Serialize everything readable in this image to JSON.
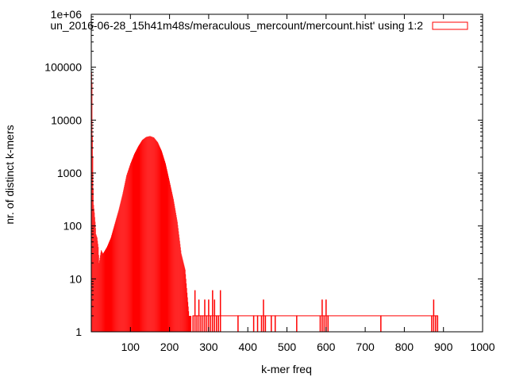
{
  "chart_data": {
    "type": "bar",
    "title": "",
    "xlabel": "k-mer freq",
    "ylabel": "nr. of distinct k-mers",
    "xlim": [
      0,
      1000
    ],
    "ylim": [
      1,
      1000000
    ],
    "y_scale": "log",
    "grid": false,
    "legend_position": "top-right",
    "xticks": [
      {
        "value": 100,
        "label": "100"
      },
      {
        "value": 200,
        "label": "200"
      },
      {
        "value": 300,
        "label": "300"
      },
      {
        "value": 400,
        "label": "400"
      },
      {
        "value": 500,
        "label": "500"
      },
      {
        "value": 600,
        "label": "600"
      },
      {
        "value": 700,
        "label": "700"
      },
      {
        "value": 800,
        "label": "800"
      },
      {
        "value": 900,
        "label": "900"
      },
      {
        "value": 1000,
        "label": "1000"
      }
    ],
    "yticks": [
      {
        "value": 1,
        "label": "1"
      },
      {
        "value": 10,
        "label": "10"
      },
      {
        "value": 100,
        "label": "100"
      },
      {
        "value": 1000,
        "label": "1000"
      },
      {
        "value": 10000,
        "label": "10000"
      },
      {
        "value": 100000,
        "label": "100000"
      },
      {
        "value": 1000000,
        "label": "1e+06"
      }
    ],
    "series": [
      {
        "name": "un_2016-06-28_15h41m48s/meraculous_mercount/mercount.hist' using 1:2",
        "color": "#ff0000",
        "x": [
          1,
          2,
          3,
          4,
          5,
          6,
          8,
          10,
          12,
          15,
          18,
          20,
          25,
          30,
          40,
          50,
          60,
          70,
          80,
          90,
          100,
          110,
          120,
          130,
          140,
          150,
          160,
          170,
          180,
          190,
          200,
          210,
          220,
          230,
          240,
          250,
          255,
          260,
          265,
          270,
          275,
          280,
          285,
          290,
          295,
          300,
          305,
          310,
          315,
          320,
          325,
          330,
          375,
          415,
          425,
          435,
          440,
          445,
          460,
          470,
          525,
          585,
          590,
          595,
          600,
          605,
          740,
          870,
          875,
          880,
          885
        ],
        "values": [
          80000,
          50000,
          5000,
          2000,
          500,
          250,
          180,
          120,
          70,
          60,
          40,
          20,
          35,
          30,
          40,
          60,
          110,
          200,
          400,
          900,
          1500,
          2300,
          3200,
          4200,
          4800,
          5000,
          4700,
          3800,
          2600,
          1500,
          700,
          320,
          120,
          30,
          15,
          2,
          2,
          2,
          6,
          2,
          4,
          2,
          2,
          4,
          2,
          4,
          2,
          6,
          4,
          2,
          2,
          6,
          2,
          2,
          2,
          2,
          4,
          2,
          2,
          2,
          2,
          2,
          4,
          2,
          4,
          2,
          2,
          2,
          4,
          2,
          2
        ]
      }
    ]
  }
}
